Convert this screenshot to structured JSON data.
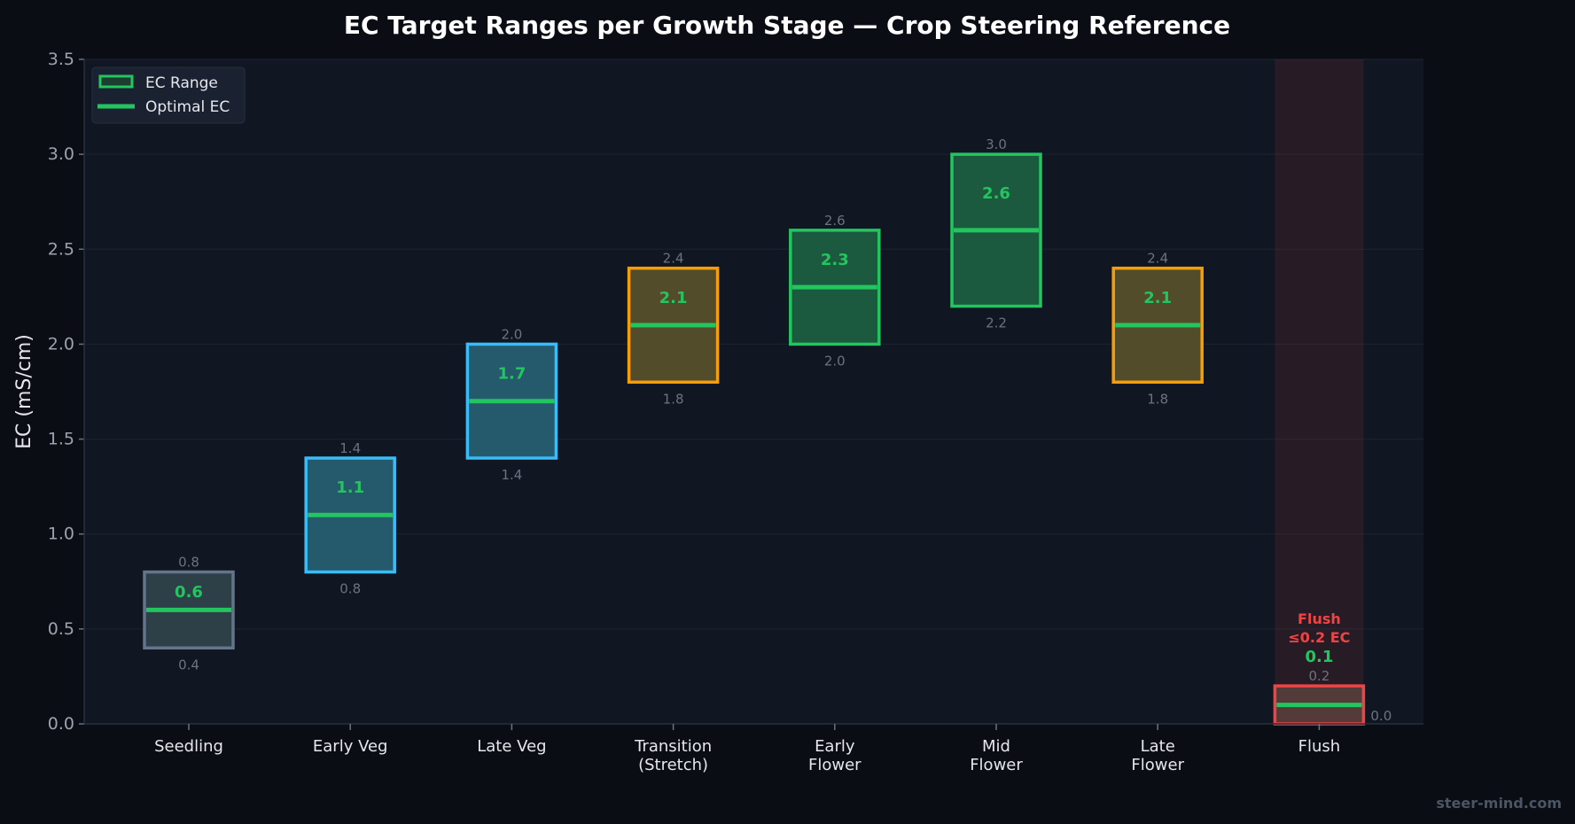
{
  "chart_data": {
    "type": "bar",
    "subtype": "floating-range",
    "title": "EC Target Ranges per Growth Stage — Crop Steering Reference",
    "xlabel": "",
    "ylabel": "EC (mS/cm)",
    "ylim": [
      0,
      3.5
    ],
    "yticks": [
      "0.0",
      "0.5",
      "1.0",
      "1.5",
      "2.0",
      "2.5",
      "3.0",
      "3.5"
    ],
    "grid": true,
    "legend": {
      "placement": "top-left",
      "entries": [
        "EC Range",
        "Optimal EC"
      ]
    },
    "optimal_color": "#22c55e",
    "categories": [
      {
        "label": [
          "Seedling"
        ],
        "min": 0.4,
        "max": 0.8,
        "optimal": 0.6,
        "min_label": "0.4",
        "max_label": "0.8",
        "optimal_label": "0.6",
        "edge": "#64748b",
        "fill": "#2d4048"
      },
      {
        "label": [
          "Early Veg"
        ],
        "min": 0.8,
        "max": 1.4,
        "optimal": 1.1,
        "min_label": "0.8",
        "max_label": "1.4",
        "optimal_label": "1.1",
        "edge": "#38bdf8",
        "fill": "#245a6c"
      },
      {
        "label": [
          "Late Veg"
        ],
        "min": 1.4,
        "max": 2.0,
        "optimal": 1.7,
        "min_label": "1.4",
        "max_label": "2.0",
        "optimal_label": "1.7",
        "edge": "#38bdf8",
        "fill": "#245a6c"
      },
      {
        "label": [
          "Transition",
          "(Stretch)"
        ],
        "min": 1.8,
        "max": 2.4,
        "optimal": 2.1,
        "min_label": "1.8",
        "max_label": "2.4",
        "optimal_label": "2.1",
        "edge": "#f59e0b",
        "fill": "#524c2a"
      },
      {
        "label": [
          "Early",
          "Flower"
        ],
        "min": 2.0,
        "max": 2.6,
        "optimal": 2.3,
        "min_label": "2.0",
        "max_label": "2.6",
        "optimal_label": "2.3",
        "edge": "#22c55e",
        "fill": "#1b5a3e"
      },
      {
        "label": [
          "Mid",
          "Flower"
        ],
        "min": 2.2,
        "max": 3.0,
        "optimal": 2.6,
        "min_label": "2.2",
        "max_label": "3.0",
        "optimal_label": "2.6",
        "edge": "#22c55e",
        "fill": "#1b5a3e"
      },
      {
        "label": [
          "Late",
          "Flower"
        ],
        "min": 1.8,
        "max": 2.4,
        "optimal": 2.1,
        "min_label": "1.8",
        "max_label": "2.4",
        "optimal_label": "2.1",
        "edge": "#f59e0b",
        "fill": "#524c2a"
      },
      {
        "label": [
          "Flush"
        ],
        "min": 0.0,
        "max": 0.2,
        "optimal": 0.1,
        "min_label": "0.0",
        "max_label": "0.2",
        "optimal_label": "0.1",
        "edge": "#ef4444",
        "fill": "#533b3a",
        "highlight": true
      }
    ],
    "annotations": [
      {
        "category": "Flush",
        "lines": [
          "Flush",
          "≤0.2 EC"
        ],
        "color": "#ef4444"
      }
    ]
  },
  "watermark": "steer-mind.com"
}
